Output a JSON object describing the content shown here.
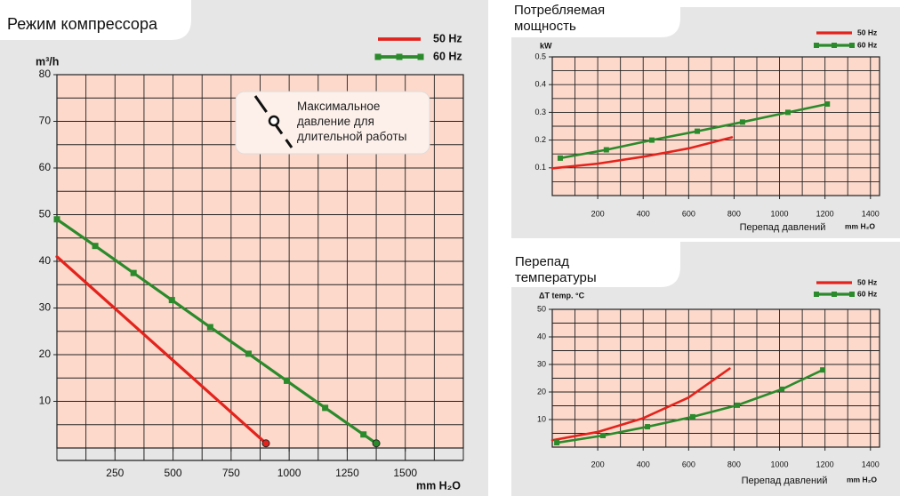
{
  "chart_data": [
    {
      "type": "line",
      "title": "Режим компрессора",
      "y_label": "m³/h",
      "x_label": "mm H₂O",
      "annotation": "Максимальное давление для длительной работы",
      "xlim": [
        0,
        1750
      ],
      "xticks": [
        250,
        500,
        750,
        1000,
        1250,
        1500
      ],
      "x_minor_step": 125,
      "ylim": [
        0,
        80
      ],
      "yticks": [
        10,
        20,
        30,
        40,
        50,
        60,
        70,
        80
      ],
      "y_minor_step": 5,
      "grid": true,
      "series": [
        {
          "name": "50 Hz",
          "color": "#e3231c",
          "marker": "none",
          "end_marker": "circle",
          "x": [
            0,
            450,
            900
          ],
          "values": [
            41,
            21,
            1
          ]
        },
        {
          "name": "60 Hz",
          "color": "#2b8a2b",
          "marker": "square",
          "end_marker": "circle",
          "x": [
            0,
            165,
            330,
            495,
            660,
            825,
            990,
            1155,
            1320,
            1375
          ],
          "values": [
            49,
            43.3,
            37.5,
            31.7,
            25.9,
            20.2,
            14.4,
            8.6,
            2.9,
            1
          ]
        }
      ]
    },
    {
      "type": "line",
      "title": "Потребляемая мощность",
      "y_label": "kW",
      "x_label": "Перепад давлений",
      "x_unit": "mm H₂O",
      "xlim": [
        0,
        1440
      ],
      "xticks": [
        200,
        400,
        600,
        800,
        1000,
        1200,
        1400
      ],
      "x_minor_step": 100,
      "ylim": [
        0,
        0.5
      ],
      "yticks": [
        0.1,
        0.2,
        0.3,
        0.4,
        0.5
      ],
      "y_minor_step": 0.05,
      "grid": true,
      "series": [
        {
          "name": "50 Hz",
          "color": "#e3231c",
          "marker": "none",
          "x": [
            0,
            200,
            400,
            600,
            790
          ],
          "values": [
            0.098,
            0.115,
            0.14,
            0.17,
            0.21
          ]
        },
        {
          "name": "60 Hz",
          "color": "#2b8a2b",
          "marker": "square",
          "x": [
            35,
            238,
            438,
            638,
            837,
            1037,
            1210
          ],
          "values": [
            0.135,
            0.165,
            0.2,
            0.232,
            0.265,
            0.3,
            0.33
          ]
        }
      ]
    },
    {
      "type": "line",
      "title": "Перепад температуры",
      "y_label": "ΔT  temp. °C",
      "x_label": "Перепад давлений",
      "x_unit": "mm H₂O",
      "xlim": [
        0,
        1440
      ],
      "xticks": [
        200,
        400,
        600,
        800,
        1000,
        1200,
        1400
      ],
      "x_minor_step": 100,
      "ylim": [
        0,
        50
      ],
      "yticks": [
        10,
        20,
        30,
        40,
        50
      ],
      "y_minor_step": 5,
      "grid": true,
      "series": [
        {
          "name": "50 Hz",
          "color": "#e3231c",
          "marker": "none",
          "x": [
            0,
            200,
            400,
            600,
            780
          ],
          "values": [
            2.5,
            5.5,
            10.5,
            18,
            28.5
          ]
        },
        {
          "name": "60 Hz",
          "color": "#2b8a2b",
          "marker": "square",
          "x": [
            20,
            223,
            419,
            618,
            814,
            1010,
            1190
          ],
          "values": [
            1.6,
            4.2,
            7.4,
            11,
            15.2,
            21,
            28
          ]
        }
      ]
    }
  ]
}
